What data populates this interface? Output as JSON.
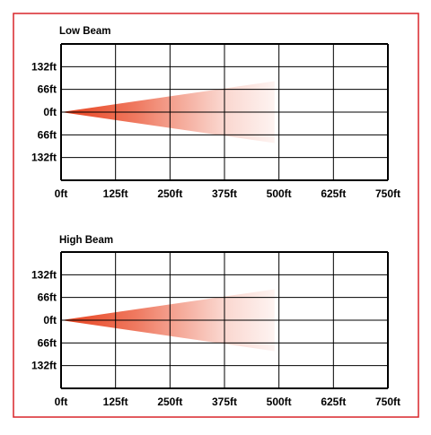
{
  "frame_color": "#d9252a",
  "beam_color": "#e8401c",
  "chart_data": [
    {
      "type": "area",
      "title": "Low Beam",
      "x_ticks": [
        "0ft",
        "125ft",
        "250ft",
        "375ft",
        "500ft",
        "625ft",
        "750ft"
      ],
      "y_ticks": [
        "132ft",
        "66ft",
        "0ft",
        "66ft",
        "132ft"
      ],
      "xlim": [
        0,
        750
      ],
      "ylim": [
        -198,
        198
      ],
      "beam": {
        "origin": [
          0,
          0
        ],
        "end_distance": 490,
        "upper_spread": 90,
        "lower_spread": -90
      }
    },
    {
      "type": "area",
      "title": "High Beam",
      "x_ticks": [
        "0ft",
        "125ft",
        "250ft",
        "375ft",
        "500ft",
        "625ft",
        "750ft"
      ],
      "y_ticks": [
        "132ft",
        "66ft",
        "0ft",
        "66ft",
        "132ft"
      ],
      "xlim": [
        0,
        750
      ],
      "ylim": [
        -198,
        198
      ],
      "beam": {
        "origin": [
          0,
          0
        ],
        "end_distance": 490,
        "upper_spread": 90,
        "lower_spread": -90
      }
    }
  ]
}
